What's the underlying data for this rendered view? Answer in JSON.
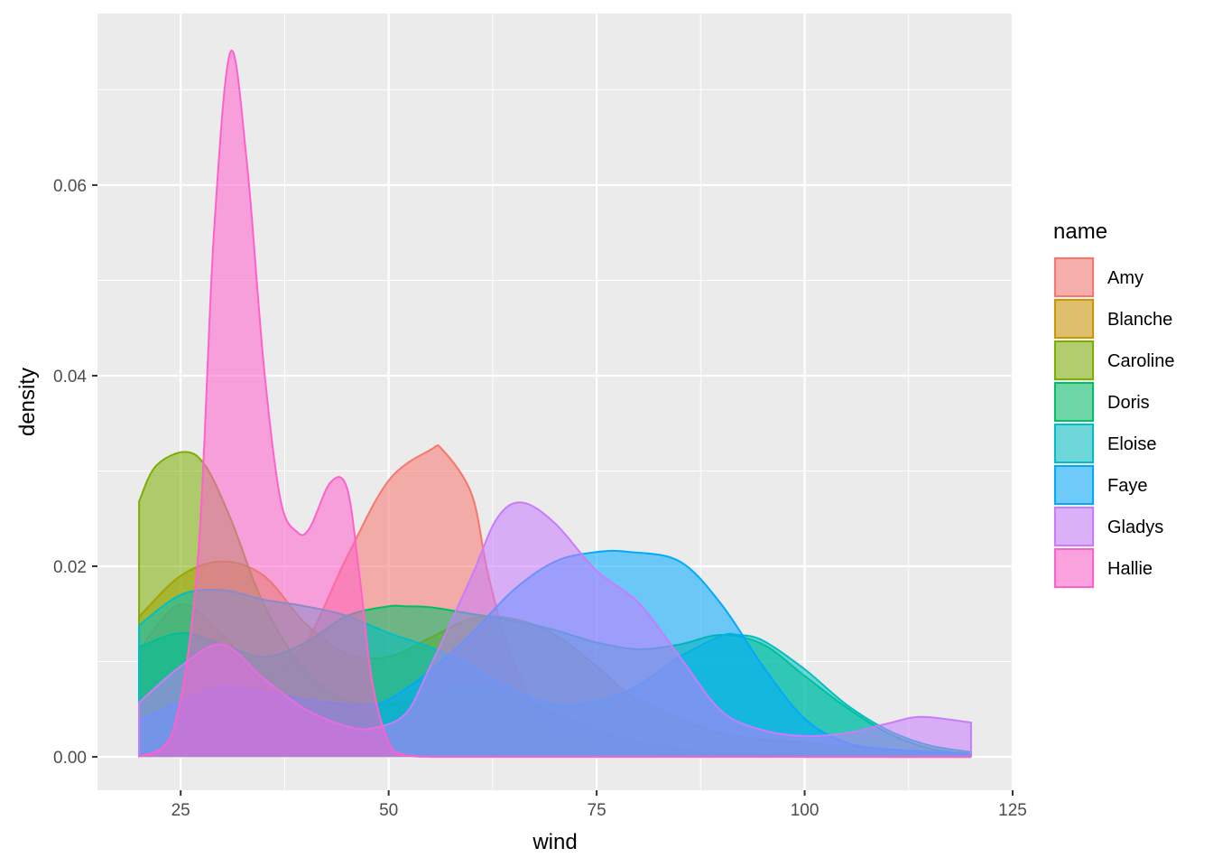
{
  "chart_data": {
    "type": "area",
    "xlabel": "wind",
    "ylabel": "density",
    "xlim": [
      15,
      125
    ],
    "ylim": [
      -0.0035,
      0.078
    ],
    "x_ticks": [
      25,
      50,
      75,
      100,
      125
    ],
    "x_tick_labels": [
      "25",
      "50",
      "75",
      "100",
      "125"
    ],
    "y_ticks": [
      0.0,
      0.02,
      0.04,
      0.06
    ],
    "y_tick_labels": [
      "0.00",
      "0.02",
      "0.04",
      "0.06"
    ],
    "grid": true,
    "legend": {
      "title": "name",
      "placement": "right"
    },
    "series": [
      {
        "name": "Amy",
        "color": "#F8766D",
        "x": [
          20,
          25,
          30,
          35,
          40,
          45,
          50,
          55,
          56.5,
          60,
          62,
          65,
          70,
          80,
          90,
          100,
          110,
          120
        ],
        "y": [
          0.0112,
          0.016,
          0.0128,
          0.0085,
          0.012,
          0.021,
          0.029,
          0.0322,
          0.0322,
          0.0275,
          0.019,
          0.01,
          0.003,
          0.0005,
          0.0001,
          0.0,
          0.0,
          0.0
        ]
      },
      {
        "name": "Blanche",
        "color": "#CD9600",
        "x": [
          20,
          25,
          30,
          35,
          40,
          45,
          50,
          55,
          60,
          65,
          70,
          75,
          80,
          90,
          100,
          110,
          120
        ],
        "y": [
          0.0147,
          0.019,
          0.0205,
          0.019,
          0.014,
          0.0108,
          0.0105,
          0.0125,
          0.0145,
          0.0145,
          0.0128,
          0.0095,
          0.006,
          0.0025,
          0.0015,
          0.0008,
          0.0004
        ]
      },
      {
        "name": "Caroline",
        "color": "#7CAE00",
        "x": [
          20,
          22,
          25.5,
          28,
          31,
          35,
          40,
          45,
          50,
          55,
          60,
          65,
          70,
          80,
          90,
          100,
          110,
          120
        ],
        "y": [
          0.0268,
          0.0305,
          0.032,
          0.0305,
          0.025,
          0.016,
          0.009,
          0.006,
          0.0055,
          0.0065,
          0.0075,
          0.0065,
          0.0045,
          0.0015,
          0.0004,
          0.0001,
          0.0,
          0.0
        ]
      },
      {
        "name": "Doris",
        "color": "#00BE67",
        "x": [
          20,
          25,
          30,
          35,
          40,
          45,
          50,
          52,
          55,
          60,
          65,
          70,
          75,
          80,
          85,
          90,
          95,
          100,
          105,
          110,
          115,
          120
        ],
        "y": [
          0.0115,
          0.013,
          0.0118,
          0.0105,
          0.012,
          0.0148,
          0.0158,
          0.0158,
          0.0157,
          0.015,
          0.0143,
          0.0133,
          0.012,
          0.0113,
          0.0118,
          0.0128,
          0.0118,
          0.0085,
          0.0052,
          0.0025,
          0.0009,
          0.0003
        ]
      },
      {
        "name": "Eloise",
        "color": "#00BFC4",
        "x": [
          20,
          25,
          30,
          35,
          40,
          45,
          50,
          55,
          60,
          65,
          70,
          75,
          80,
          85,
          90,
          92,
          95,
          100,
          105,
          110,
          115,
          120
        ],
        "y": [
          0.0138,
          0.017,
          0.0175,
          0.0165,
          0.0158,
          0.0148,
          0.013,
          0.0115,
          0.0095,
          0.007,
          0.0055,
          0.0058,
          0.0075,
          0.0105,
          0.0127,
          0.0128,
          0.0122,
          0.0092,
          0.0055,
          0.0028,
          0.0012,
          0.0005
        ]
      },
      {
        "name": "Faye",
        "color": "#00A9FF",
        "x": [
          20,
          25,
          30,
          35,
          40,
          45,
          48,
          50,
          55,
          60,
          65,
          70,
          75,
          79,
          85,
          90,
          95,
          100,
          105,
          110,
          115,
          120
        ],
        "y": [
          0.0038,
          0.0058,
          0.0073,
          0.0068,
          0.006,
          0.0055,
          0.0055,
          0.006,
          0.009,
          0.013,
          0.0175,
          0.0205,
          0.0215,
          0.0215,
          0.0205,
          0.016,
          0.0095,
          0.004,
          0.0015,
          0.0008,
          0.0005,
          0.0003
        ]
      },
      {
        "name": "Gladys",
        "color": "#C77CFF",
        "x": [
          20,
          25,
          30,
          35,
          40,
          45,
          48,
          52,
          55,
          60,
          63,
          66,
          70,
          75,
          80,
          85,
          90,
          95,
          100,
          105,
          110,
          114,
          120
        ],
        "y": [
          0.0057,
          0.0095,
          0.0118,
          0.0082,
          0.005,
          0.0032,
          0.003,
          0.0045,
          0.0095,
          0.019,
          0.025,
          0.0267,
          0.0245,
          0.0195,
          0.0162,
          0.0105,
          0.0048,
          0.0028,
          0.0022,
          0.0025,
          0.0035,
          0.0042,
          0.0036
        ]
      },
      {
        "name": "Hallie",
        "color": "#FF61CC",
        "x": [
          20,
          24,
          27,
          29,
          31,
          33,
          35,
          37,
          39,
          40.5,
          43,
          45,
          46.5,
          48,
          50,
          52,
          55,
          60,
          80,
          120
        ],
        "y": [
          0.0,
          0.0025,
          0.02,
          0.055,
          0.074,
          0.062,
          0.041,
          0.027,
          0.0236,
          0.024,
          0.0288,
          0.0282,
          0.019,
          0.008,
          0.0015,
          0.0002,
          0.0,
          0.0,
          0.0,
          0.0
        ]
      }
    ]
  }
}
